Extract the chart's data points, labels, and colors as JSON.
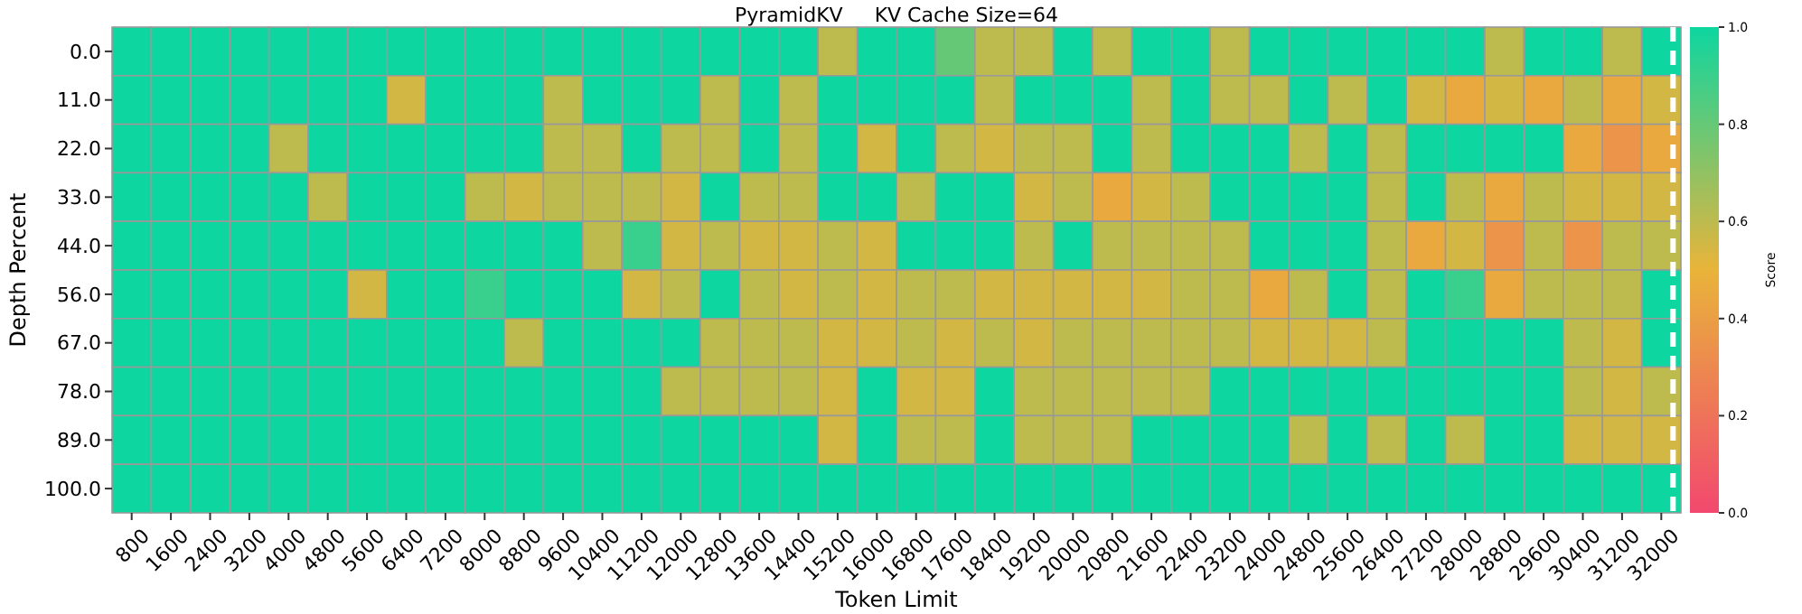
{
  "chart_data": {
    "type": "heatmap",
    "title": "PyramidKV     KV Cache Size=64",
    "xlabel": "Token Limit",
    "ylabel": "Depth Percent",
    "clabel": "Score",
    "categories": [
      "800",
      "1600",
      "2400",
      "3200",
      "4000",
      "4800",
      "5600",
      "6400",
      "7200",
      "8000",
      "8800",
      "9600",
      "10400",
      "11200",
      "12000",
      "12800",
      "13600",
      "14400",
      "15200",
      "16000",
      "16800",
      "17600",
      "18400",
      "19200",
      "20000",
      "20800",
      "21600",
      "22400",
      "23200",
      "24000",
      "24800",
      "25600",
      "26400",
      "27200",
      "28000",
      "28800",
      "29600",
      "30400",
      "31200",
      "32000"
    ],
    "y_categories": [
      "0.0",
      "11.0",
      "22.0",
      "33.0",
      "44.0",
      "56.0",
      "67.0",
      "78.0",
      "89.0",
      "100.0"
    ],
    "cells": [
      [
        1,
        1,
        1,
        1,
        1,
        1,
        1,
        1,
        1,
        1,
        1,
        1,
        1,
        1,
        1,
        1,
        1,
        1,
        0.6,
        1,
        1,
        0.8,
        0.6,
        0.6,
        1,
        0.6,
        1,
        1,
        0.6,
        1,
        1,
        1,
        1,
        1,
        1,
        0.6,
        1,
        1,
        0.6,
        1
      ],
      [
        1,
        1,
        1,
        1,
        1,
        1,
        1,
        0.55,
        1,
        1,
        1,
        0.6,
        1,
        1,
        1,
        0.6,
        1,
        0.6,
        1,
        1,
        1,
        1,
        0.6,
        1,
        1,
        1,
        0.6,
        1,
        0.6,
        0.6,
        1,
        0.6,
        1,
        0.55,
        0.45,
        0.55,
        0.45,
        0.6,
        0.45,
        0.55
      ],
      [
        1,
        1,
        1,
        1,
        0.6,
        1,
        1,
        1,
        1,
        1,
        1,
        0.6,
        0.6,
        1,
        0.6,
        0.6,
        1,
        0.6,
        1,
        0.55,
        1,
        0.6,
        0.55,
        0.6,
        0.6,
        1,
        0.6,
        1,
        1,
        1,
        0.6,
        1,
        0.6,
        1,
        1,
        1,
        1,
        0.45,
        0.35,
        0.45
      ],
      [
        1,
        1,
        1,
        1,
        1,
        0.6,
        1,
        1,
        1,
        0.6,
        0.55,
        0.6,
        0.6,
        0.6,
        0.55,
        1,
        0.6,
        0.6,
        1,
        1,
        0.6,
        1,
        1,
        0.55,
        0.6,
        0.45,
        0.55,
        0.6,
        1,
        1,
        1,
        1,
        0.6,
        1,
        0.6,
        0.45,
        0.6,
        0.55,
        0.55,
        0.55
      ],
      [
        1,
        1,
        1,
        1,
        1,
        1,
        1,
        1,
        1,
        1,
        1,
        1,
        0.6,
        0.9,
        0.55,
        0.6,
        0.55,
        0.55,
        0.6,
        0.55,
        1,
        1,
        1,
        0.6,
        1,
        0.6,
        0.6,
        0.6,
        0.6,
        1,
        1,
        1,
        0.6,
        0.45,
        0.55,
        0.35,
        0.6,
        0.35,
        0.6,
        0.6
      ],
      [
        1,
        1,
        1,
        1,
        1,
        1,
        0.55,
        1,
        1,
        0.9,
        1,
        1,
        1,
        0.55,
        0.6,
        1,
        0.6,
        0.55,
        0.6,
        0.55,
        0.6,
        0.6,
        0.55,
        0.55,
        0.55,
        0.55,
        0.55,
        0.6,
        0.6,
        0.45,
        0.6,
        1,
        0.6,
        1,
        0.9,
        0.45,
        0.6,
        0.6,
        0.6,
        1
      ],
      [
        1,
        1,
        1,
        1,
        1,
        1,
        1,
        1,
        1,
        1,
        0.6,
        1,
        1,
        1,
        1,
        0.6,
        0.6,
        0.6,
        0.55,
        0.55,
        0.6,
        0.55,
        0.6,
        0.55,
        0.6,
        0.6,
        0.6,
        0.6,
        0.6,
        0.55,
        0.55,
        0.55,
        0.6,
        1,
        1,
        1,
        1,
        0.6,
        0.55,
        1
      ],
      [
        1,
        1,
        1,
        1,
        1,
        1,
        1,
        1,
        1,
        1,
        1,
        1,
        1,
        1,
        0.6,
        0.6,
        0.6,
        0.6,
        0.55,
        1,
        0.55,
        0.55,
        1,
        0.6,
        0.6,
        0.6,
        0.6,
        0.6,
        1,
        1,
        1,
        1,
        1,
        1,
        1,
        1,
        1,
        0.6,
        0.55,
        0.6
      ],
      [
        1,
        1,
        1,
        1,
        1,
        1,
        1,
        1,
        1,
        1,
        1,
        1,
        1,
        1,
        1,
        1,
        1,
        1,
        0.55,
        1,
        0.6,
        0.6,
        1,
        0.6,
        0.6,
        0.6,
        1,
        1,
        1,
        1,
        0.6,
        1,
        0.6,
        1,
        0.6,
        1,
        1,
        0.55,
        0.55,
        0.55
      ],
      [
        1,
        1,
        1,
        1,
        1,
        1,
        1,
        1,
        1,
        1,
        1,
        1,
        1,
        1,
        1,
        1,
        1,
        1,
        1,
        1,
        1,
        1,
        1,
        1,
        1,
        1,
        1,
        1,
        1,
        1,
        1,
        1,
        1,
        1,
        1,
        1,
        1,
        1,
        1,
        1
      ]
    ],
    "colors": [
      "#f2486e",
      "#e9b43a",
      "#0dd6a0"
    ],
    "clim": [
      0,
      1
    ],
    "cticks": [
      {
        "value": 0,
        "label": "0.0"
      },
      {
        "value": 0.2,
        "label": "0.2"
      },
      {
        "value": 0.4,
        "label": "0.4"
      },
      {
        "value": 0.6,
        "label": "0.6"
      },
      {
        "value": 0.8,
        "label": "0.8"
      },
      {
        "value": 1,
        "label": "1.0"
      }
    ],
    "ref_lines": [
      {
        "axis": "x",
        "value": "32000",
        "color": "#ffffff",
        "line_style": "dashed"
      }
    ]
  }
}
